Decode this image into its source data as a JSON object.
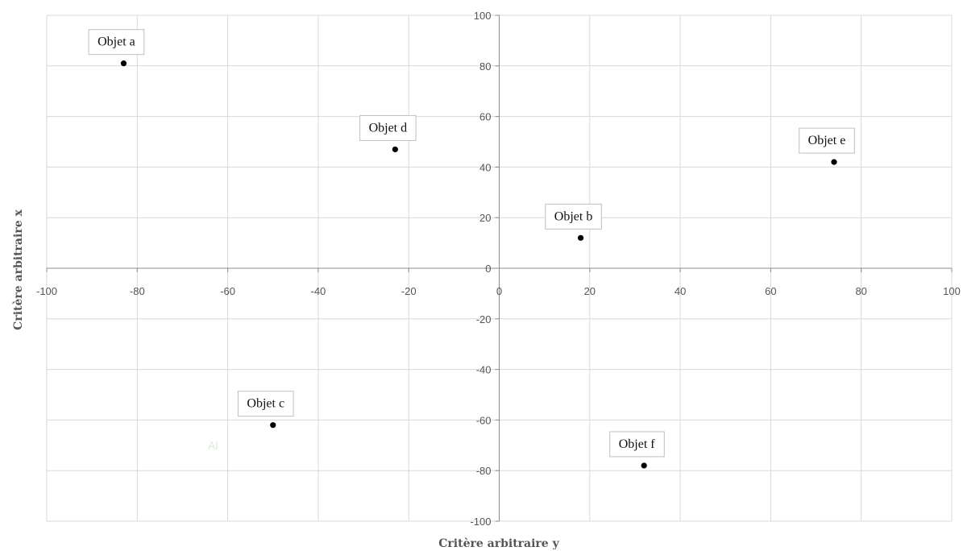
{
  "chart_data": {
    "type": "scatter",
    "title": "",
    "xlabel": "Critère arbitraire y",
    "ylabel": "Critère arbitraire x",
    "xlim": [
      -100,
      100
    ],
    "ylim": [
      -100,
      100
    ],
    "x_ticks": [
      -100,
      -80,
      -60,
      -40,
      -20,
      0,
      20,
      40,
      60,
      80,
      100
    ],
    "y_ticks": [
      -100,
      -80,
      -60,
      -40,
      -20,
      0,
      20,
      40,
      60,
      80,
      100
    ],
    "grid": true,
    "legend": "none",
    "stray_text": "Al",
    "points": [
      {
        "label": "Objet a",
        "x": -83,
        "y": 81
      },
      {
        "label": "Objet d",
        "x": -23,
        "y": 47
      },
      {
        "label": "Objet e",
        "x": 74,
        "y": 42
      },
      {
        "label": "Objet b",
        "x": 18,
        "y": 12
      },
      {
        "label": "Objet c",
        "x": -50,
        "y": -62
      },
      {
        "label": "Objet f",
        "x": 32,
        "y": -78
      }
    ],
    "colors": {
      "grid": "#d9d9d9",
      "axis": "#8c8c8c",
      "marker": "#000000",
      "label_border": "#bfbfbf"
    }
  }
}
